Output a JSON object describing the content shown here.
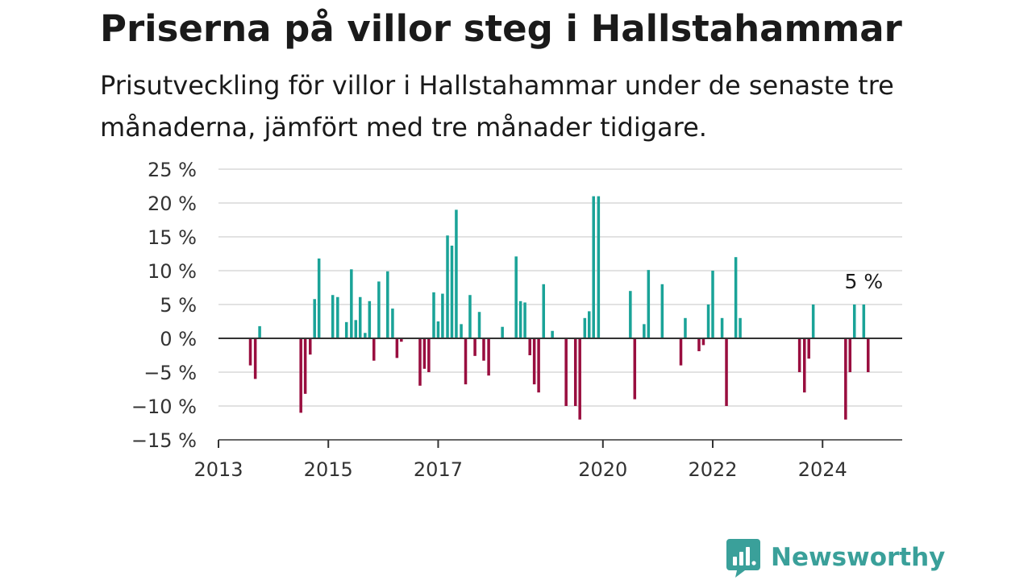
{
  "chart_data": {
    "type": "bar",
    "title": "Priserna på villor steg i Hallstahammar",
    "subtitle": "Prisutveckling för villor i Hallstahammar under de senaste tre månaderna, jämfört med tre månader tidigare.",
    "xlabel": "",
    "ylabel": "",
    "ylim": [
      -15,
      25
    ],
    "y_ticks": [
      25,
      20,
      15,
      10,
      5,
      0,
      -5,
      -10,
      -15
    ],
    "y_tick_labels": [
      "25 %",
      "20 %",
      "15 %",
      "10 %",
      "5 %",
      "0 %",
      "−5 %",
      "−10 %",
      "−15 %"
    ],
    "x_ticks": [
      2013,
      2015,
      2017,
      2020,
      2022,
      2024
    ],
    "x_tick_labels": [
      "2013",
      "2015",
      "2017",
      "2020",
      "2022",
      "2024"
    ],
    "x_range": [
      2013.0,
      2025.45
    ],
    "grid": true,
    "legend": "none",
    "x": [
      2013.58,
      2013.67,
      2013.75,
      2014.5,
      2014.58,
      2014.67,
      2014.75,
      2014.83,
      2015.08,
      2015.17,
      2015.33,
      2015.42,
      2015.5,
      2015.58,
      2015.67,
      2015.75,
      2015.83,
      2015.92,
      2016.08,
      2016.17,
      2016.25,
      2016.33,
      2016.67,
      2016.75,
      2016.83,
      2016.92,
      2017.0,
      2017.08,
      2017.17,
      2017.25,
      2017.33,
      2017.42,
      2017.5,
      2017.58,
      2017.67,
      2017.75,
      2017.83,
      2017.92,
      2018.17,
      2018.42,
      2018.5,
      2018.58,
      2018.67,
      2018.75,
      2018.83,
      2018.92,
      2019.08,
      2019.33,
      2019.5,
      2019.58,
      2019.67,
      2019.75,
      2019.83,
      2019.92,
      2020.5,
      2020.58,
      2020.75,
      2020.83,
      2021.08,
      2021.42,
      2021.5,
      2021.75,
      2021.83,
      2021.92,
      2022.0,
      2022.17,
      2022.25,
      2022.42,
      2022.5,
      2023.58,
      2023.67,
      2023.75,
      2023.83,
      2024.42,
      2024.5,
      2024.58,
      2024.75,
      2024.83
    ],
    "values": [
      -4,
      -6,
      1.8,
      -11,
      -8.2,
      -2.4,
      5.8,
      11.8,
      6.4,
      6.1,
      2.4,
      10.2,
      2.7,
      6.1,
      0.8,
      5.5,
      -3.3,
      8.4,
      9.9,
      4.4,
      -2.9,
      -0.5,
      -7,
      -4.5,
      -5,
      6.8,
      2.5,
      6.6,
      15.2,
      13.7,
      19,
      2.1,
      -6.8,
      6.4,
      -2.6,
      3.9,
      -3.3,
      -5.5,
      1.7,
      12.1,
      5.5,
      5.3,
      -2.5,
      -6.8,
      -8,
      8,
      1.1,
      -10,
      -10,
      -12,
      3,
      4,
      21,
      21,
      7,
      -9,
      2.1,
      10.1,
      8,
      -4,
      3,
      -1.9,
      -1,
      5,
      10,
      3,
      -10,
      12,
      3,
      -5,
      -8,
      -3,
      5,
      -12,
      -5,
      5,
      5,
      -5
    ],
    "positive_color": "#1aa398",
    "negative_color": "#990e3f",
    "annotation": {
      "text": "5 %",
      "x": 2024.75,
      "y": 5
    }
  },
  "brand": {
    "name": "Newsworthy",
    "logo_icon": "bar-chart-speech-bubble-icon",
    "color": "#3aa09a"
  }
}
